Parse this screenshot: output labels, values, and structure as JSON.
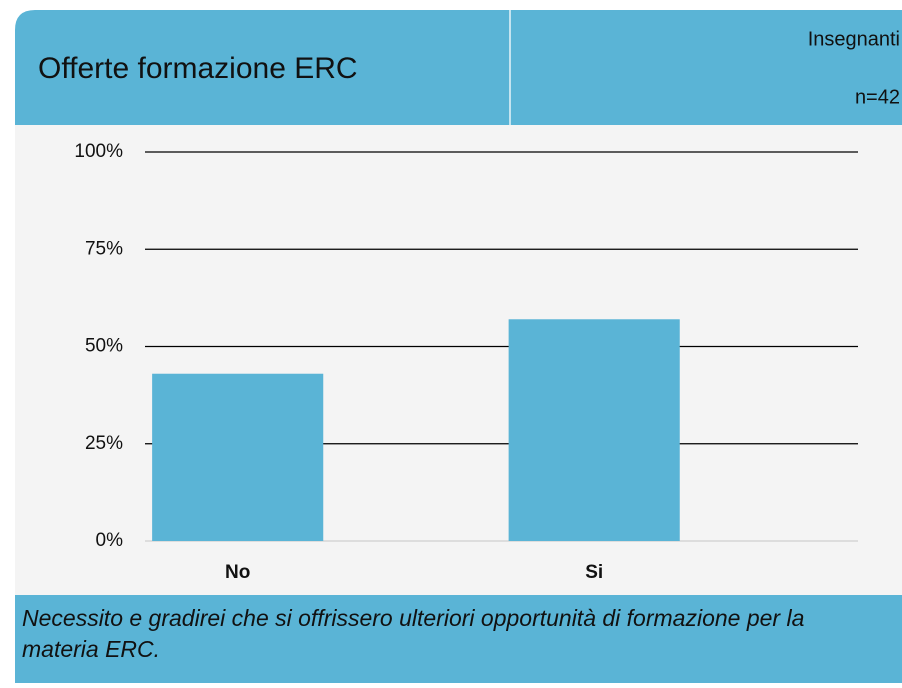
{
  "chart_data": {
    "type": "bar",
    "title": "Offerte formazione ERC",
    "subtitle": "Insegnanti",
    "note": "n=42",
    "caption": "Necessito e gradirei che si offrissero ulteriori opportunità di formazione per la materia ERC.",
    "categories": [
      "No",
      "Si"
    ],
    "values": [
      43,
      57
    ],
    "color": "#5ab4d6",
    "ylim": [
      0,
      100
    ],
    "yticks": [
      {
        "value": 0,
        "label": "0%"
      },
      {
        "value": 25,
        "label": "25%"
      },
      {
        "value": 50,
        "label": "50%"
      },
      {
        "value": 75,
        "label": "75%"
      },
      {
        "value": 100,
        "label": "100%"
      }
    ],
    "grid": true
  }
}
